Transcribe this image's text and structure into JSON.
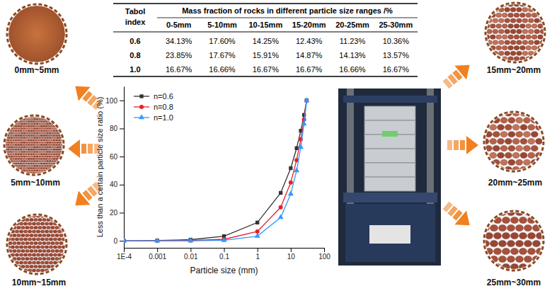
{
  "table": {
    "header": [
      "Tabol index",
      "Mass fraction of rocks in different particle size ranges /%"
    ],
    "columns": [
      "0-5mm",
      "5-10mm",
      "10-15mm",
      "15-20mm",
      "20-25mm",
      "25-30mm"
    ],
    "rows": [
      [
        "0.6",
        "34.13%",
        "17.60%",
        "14.25%",
        "12.43%",
        "11.23%",
        "10.36%"
      ],
      [
        "0.8",
        "23.85%",
        "17.67%",
        "15.91%",
        "14.87%",
        "14.13%",
        "13.57%"
      ],
      [
        "1.0",
        "16.67%",
        "16.66%",
        "16.67%",
        "16.67%",
        "16.66%",
        "16.67%"
      ]
    ]
  },
  "photo_labels": [
    "0mm~5mm",
    "5mm~10mm",
    "10mm~15mm",
    "15mm~20mm",
    "20mm~25mm",
    "25mm~30mm"
  ],
  "chart_data": {
    "type": "line",
    "x_label": "Particle size (mm)",
    "y_label": "Less than a certain particle size ratio (%)",
    "x": [
      0.0001,
      0.001,
      0.01,
      0.1,
      1,
      5,
      10,
      15,
      20,
      25,
      30
    ],
    "series": [
      {
        "name": "n=0.6",
        "color": "#333333",
        "marker": "square",
        "values": [
          0,
          0.2,
          0.8,
          3.3,
          13,
          34.13,
          51.73,
          65.98,
          78.41,
          89.64,
          100
        ]
      },
      {
        "name": "n=0.8",
        "color": "#e8202a",
        "marker": "circle",
        "values": [
          0,
          0.03,
          0.17,
          1.05,
          6.6,
          23.85,
          41.52,
          57.43,
          72.3,
          86.43,
          100
        ]
      },
      {
        "name": "n=1.0",
        "color": "#3399ff",
        "marker": "triangle",
        "values": [
          0,
          0,
          0.03,
          0.33,
          3.3,
          16.67,
          33.33,
          50,
          66.67,
          83.33,
          100
        ]
      }
    ],
    "xlim": [
      0.0001,
      100
    ],
    "ylim": [
      -5,
      110
    ],
    "xticks": [
      {
        "value": 0.0001,
        "label": "1E-4"
      },
      0.001,
      0.01,
      0.1,
      1,
      10,
      100
    ],
    "yticks": [
      0,
      20,
      40,
      60,
      80,
      100
    ],
    "log": "x",
    "grid": false,
    "legend": "upper left"
  }
}
